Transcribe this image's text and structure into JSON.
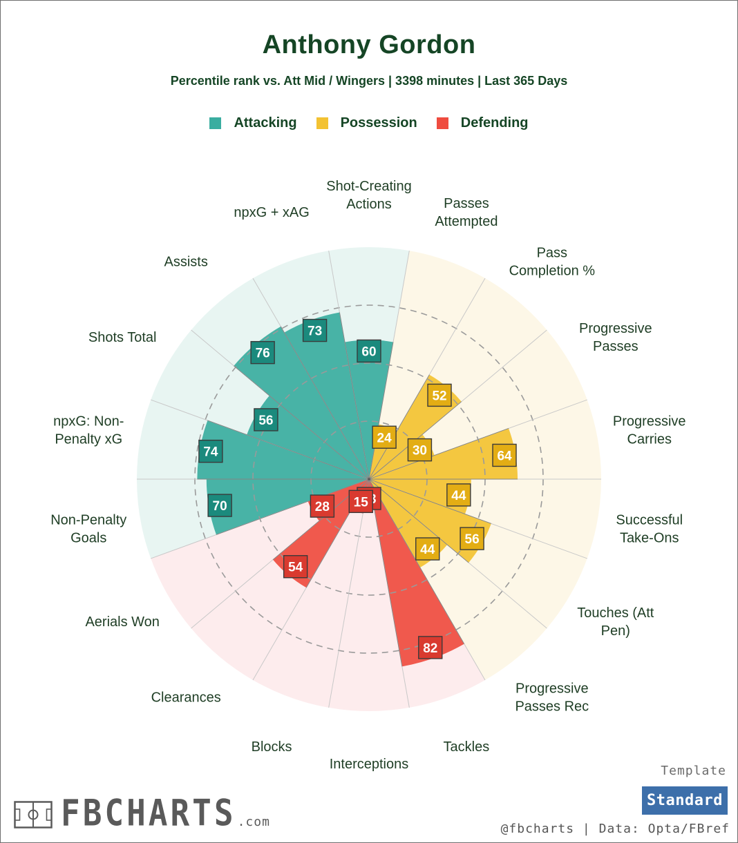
{
  "header": {
    "title": "Anthony Gordon",
    "subtitle": "Percentile rank vs. Att Mid / Wingers | 3398 minutes | Last 365 Days"
  },
  "legend": [
    {
      "label": "Attacking",
      "color": "#3aada0"
    },
    {
      "label": "Possession",
      "color": "#f3c232"
    },
    {
      "label": "Defending",
      "color": "#ef4c3f"
    }
  ],
  "chart_data": {
    "type": "polar-bar",
    "title": "Anthony Gordon",
    "rlim": [
      0,
      100
    ],
    "gridlines": [
      25,
      50,
      75
    ],
    "start_category": "Shot-Creating Actions",
    "direction": "clockwise",
    "groups": {
      "Attacking": {
        "bar_color": "#3aada0",
        "background_color": "#e8f5f2",
        "label_color": "#1b8a7d"
      },
      "Possession": {
        "bar_color": "#f3c232",
        "background_color": "#fdf7e7",
        "label_color": "#e3ad14"
      },
      "Defending": {
        "bar_color": "#ef4c3f",
        "background_color": "#fdeced",
        "label_color": "#d93a2f"
      }
    },
    "categories": [
      {
        "label": "Shot-Creating\nActions",
        "value": 60,
        "group": "Attacking"
      },
      {
        "label": "Passes\nAttempted",
        "value": 24,
        "group": "Possession"
      },
      {
        "label": "Pass\nCompletion %",
        "value": 52,
        "group": "Possession"
      },
      {
        "label": "Progressive\nPasses",
        "value": 30,
        "group": "Possession"
      },
      {
        "label": "Progressive\nCarries",
        "value": 64,
        "group": "Possession"
      },
      {
        "label": "Successful\nTake-Ons",
        "value": 44,
        "group": "Possession"
      },
      {
        "label": "Touches (Att\nPen)",
        "value": 56,
        "group": "Possession"
      },
      {
        "label": "Progressive\nPasses Rec",
        "value": 44,
        "group": "Possession"
      },
      {
        "label": "Tackles",
        "value": 82,
        "group": "Defending"
      },
      {
        "label": "Interceptions",
        "value": 13,
        "group": "Defending"
      },
      {
        "label": "Blocks",
        "value": 15,
        "group": "Defending"
      },
      {
        "label": "Clearances",
        "value": 54,
        "group": "Defending"
      },
      {
        "label": "Aerials Won",
        "value": 28,
        "group": "Defending"
      },
      {
        "label": "Non-Penalty\nGoals",
        "value": 70,
        "group": "Attacking"
      },
      {
        "label": "npxG: Non-\nPenalty xG",
        "value": 74,
        "group": "Attacking"
      },
      {
        "label": "Shots Total",
        "value": 56,
        "group": "Attacking"
      },
      {
        "label": "Assists",
        "value": 76,
        "group": "Attacking"
      },
      {
        "label": "npxG + xAG",
        "value": 73,
        "group": "Attacking"
      }
    ]
  },
  "footer": {
    "template_label": "Template",
    "template_value": "Standard",
    "credit": "@fbcharts | Data: Opta/FBref",
    "logo_text": "FBCHARTS",
    "logo_suffix": ".com"
  }
}
